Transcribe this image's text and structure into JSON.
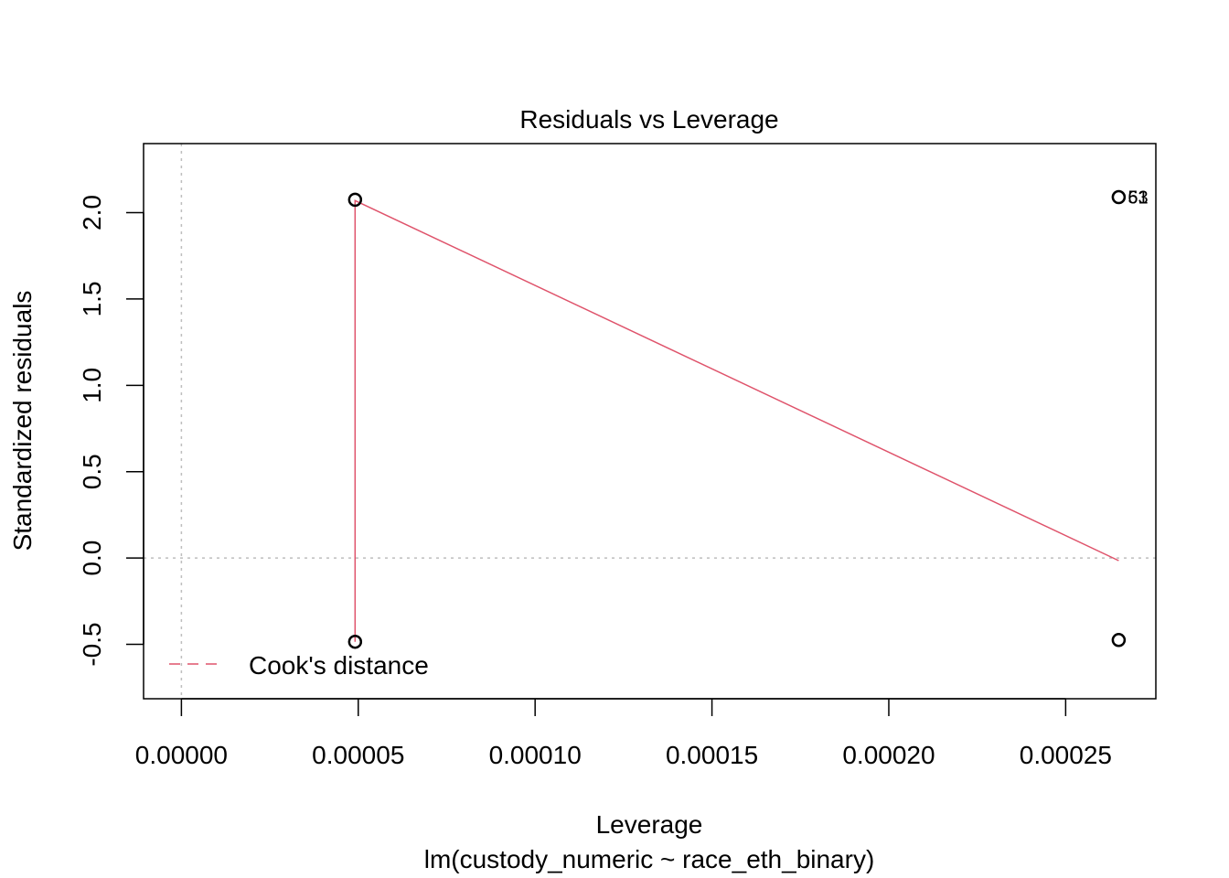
{
  "chart_data": {
    "type": "scatter",
    "title": "Residuals vs Leverage",
    "xlabel": "Leverage",
    "subtitle": "lm(custody_numeric ~ race_eth_binary)",
    "ylabel": "Standardized residuals",
    "xlim": [
      -1.07e-05,
      0.0002755
    ],
    "ylim": [
      -0.815,
      2.4
    ],
    "xticks": [
      0,
      5e-05,
      0.0001,
      0.00015,
      0.0002,
      0.00025
    ],
    "xtick_labels": [
      "0.00000",
      "0.00005",
      "0.00010",
      "0.00015",
      "0.00020",
      "0.00025"
    ],
    "yticks": [
      -0.5,
      0,
      0.5,
      1,
      1.5,
      2
    ],
    "ytick_labels": [
      "-0.5",
      "0.0",
      "0.5",
      "1.0",
      "1.5",
      "2.0"
    ],
    "points": [
      {
        "x": 4.91e-05,
        "y": 2.075
      },
      {
        "x": 4.91e-05,
        "y": -0.485
      },
      {
        "x": 0.000265,
        "y": 2.09
      },
      {
        "x": 0.000265,
        "y": -0.475
      }
    ],
    "point_labels": [
      {
        "x": 0.000265,
        "y": 2.09,
        "text": "53"
      },
      {
        "x": 0.000265,
        "y": 2.09,
        "text": "61"
      }
    ],
    "smooth_line": {
      "color": "#DF536B",
      "points": [
        [
          4.91e-05,
          -0.485
        ],
        [
          4.91e-05,
          2.07
        ],
        [
          0.000265,
          -0.015
        ]
      ]
    },
    "reference_lines": {
      "h": 0,
      "v": 0,
      "color": "#BEBEBE"
    },
    "legend": {
      "position": "bottom-left",
      "entries": [
        {
          "label": "Cook's distance",
          "color": "#DF536B",
          "style": "dashed"
        }
      ]
    },
    "grid": false
  }
}
